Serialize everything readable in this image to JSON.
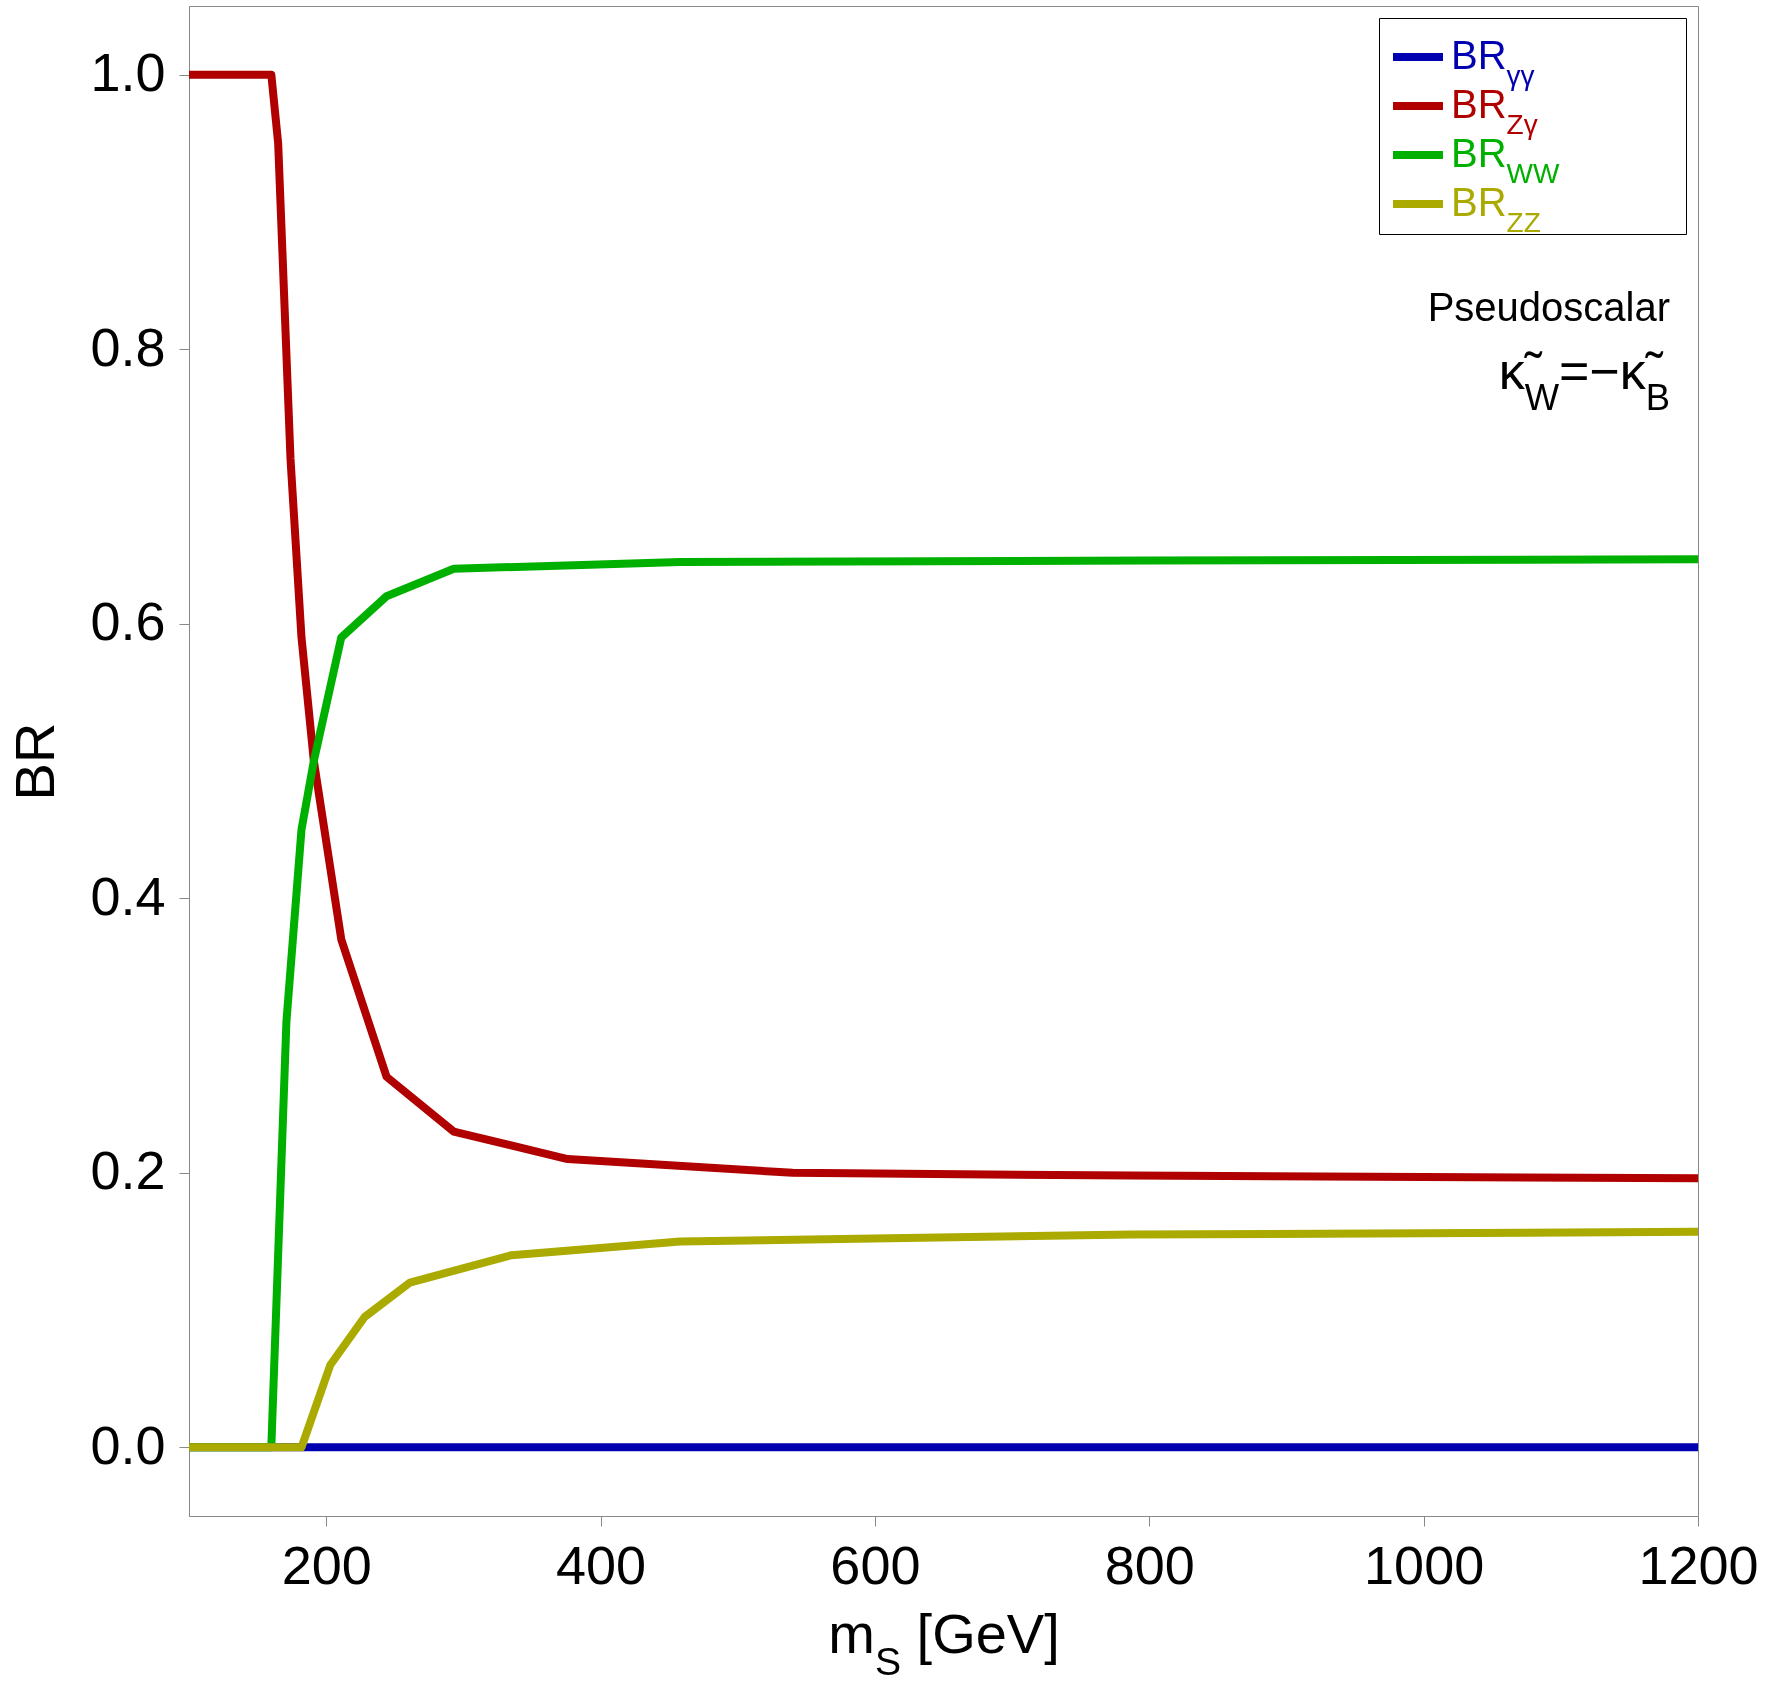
{
  "chart_data": {
    "type": "line",
    "xlabel": "m$_{S}$ [GeV]",
    "ylabel": "BR",
    "annotations": [
      "Pseudoscalar",
      "κ̃$_{W}$=−κ̃$_{B}$"
    ],
    "xlim": [
      100,
      1200
    ],
    "ylim": [
      -0.05,
      1.05
    ],
    "xticks": [
      200,
      400,
      600,
      800,
      1000,
      1200
    ],
    "yticks": [
      {
        "value": 0,
        "label": "0.0"
      },
      {
        "value": 0.2,
        "label": "0.2"
      },
      {
        "value": 0.4,
        "label": "0.4"
      },
      {
        "value": 0.6,
        "label": "0.6"
      },
      {
        "value": 0.8,
        "label": "0.8"
      },
      {
        "value": 1,
        "label": "1.0"
      }
    ],
    "grid": false,
    "legend": "top right",
    "marker": "none",
    "line_style": "solid",
    "series": [
      {
        "name": "BR$_{γγ}$",
        "color": "#0000b0",
        "x": [
          100,
          400,
          800,
          1200
        ],
        "values": [
          0,
          0,
          0,
          0
        ]
      },
      {
        "name": "BR$_{Zγ}$",
        "color": "#b00000",
        "x": [
          100,
          160,
          165,
          174,
          182,
          191,
          211,
          244,
          293,
          376,
          540,
          787,
          1200
        ],
        "values": [
          1,
          1,
          0.95,
          0.72,
          0.59,
          0.5,
          0.37,
          0.27,
          0.23,
          0.21,
          0.2,
          0.198,
          0.196
        ]
      },
      {
        "name": "BR$_{WW}$",
        "color": "#00b000",
        "x": [
          100,
          160,
          171,
          182,
          191,
          211,
          244,
          293,
          458,
          800,
          1200
        ],
        "values": [
          0,
          0,
          0.31,
          0.45,
          0.5,
          0.59,
          0.62,
          0.64,
          0.645,
          0.646,
          0.647
        ]
      },
      {
        "name": "BR$_{ZZ}$",
        "color": "#aaaa00",
        "x": [
          100,
          182,
          203,
          228,
          261,
          335,
          458,
          787,
          1200
        ],
        "values": [
          0,
          0,
          0.06,
          0.095,
          0.12,
          0.14,
          0.15,
          0.155,
          0.157
        ]
      }
    ]
  }
}
